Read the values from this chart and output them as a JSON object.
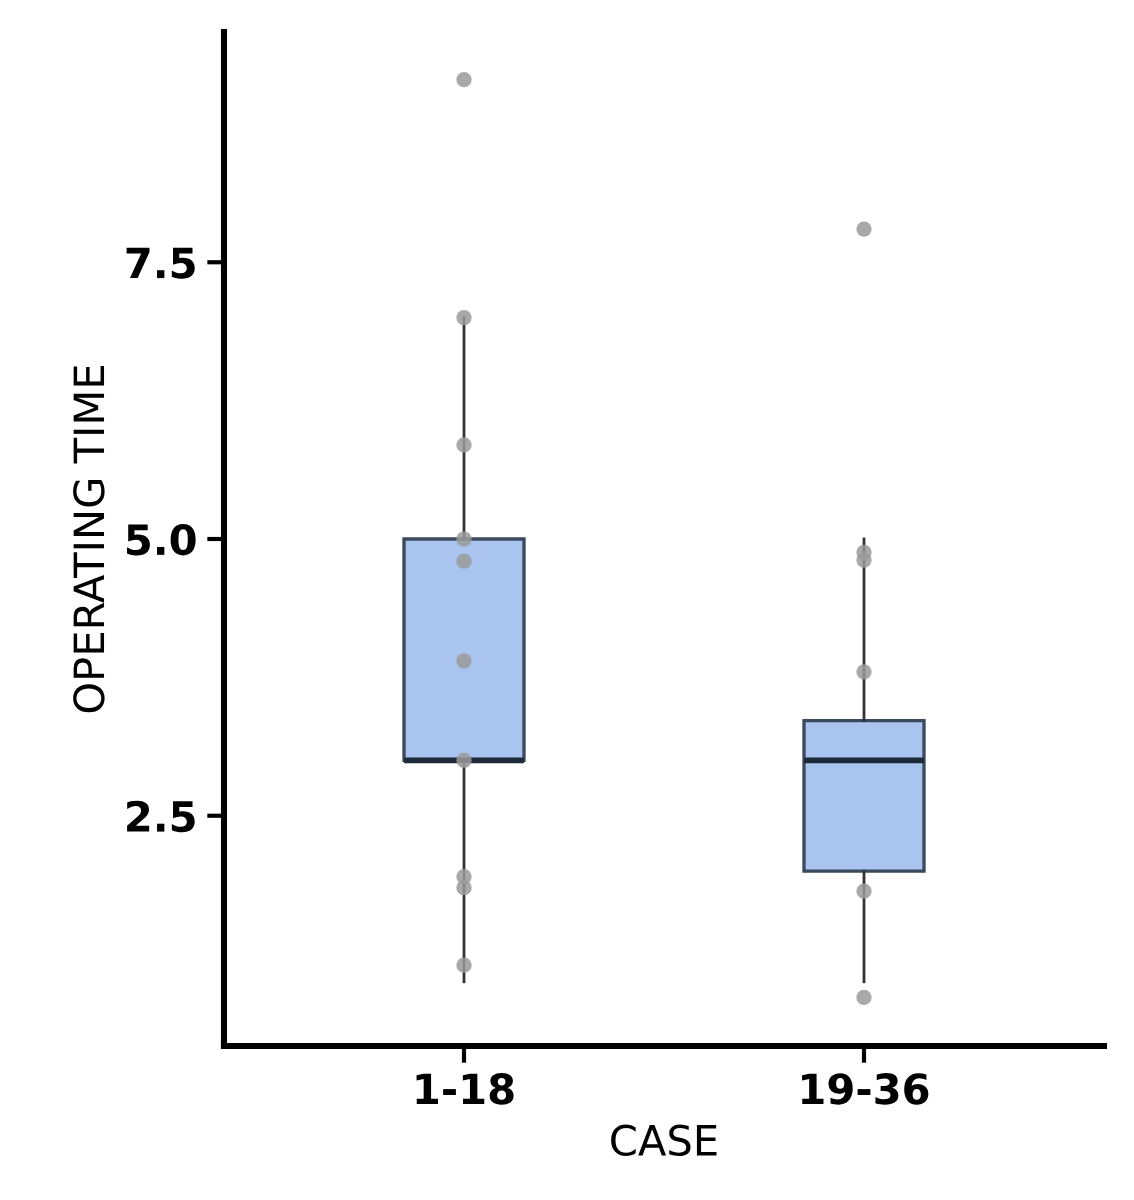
{
  "chart_data": {
    "type": "box",
    "xlabel": "CASE",
    "ylabel": "OPERATING TIME",
    "categories": [
      "1-18",
      "19-36"
    ],
    "ylim": [
      0.42,
      9.58
    ],
    "yticks": [
      {
        "value": 2.5,
        "label": "2.5"
      },
      {
        "value": 5,
        "label": "5.0"
      },
      {
        "value": 7.5,
        "label": "7.5"
      }
    ],
    "grid": false,
    "legend": false,
    "series": [
      {
        "color": "#a9c4ee",
        "boxes": [
          {
            "low": 1.0,
            "q1": 3.0,
            "median": 3.0,
            "q3": 5.0,
            "high": 7.0
          },
          {
            "low": 1.0,
            "q1": 2.0,
            "median": 3.0,
            "q3": 3.36,
            "high": 5.0
          }
        ]
      },
      {
        "type": "scatter",
        "color": "#9a9a9a",
        "marker": "circle",
        "x": [
          "1-18",
          "1-18",
          "1-18",
          "1-18",
          "1-18",
          "1-18",
          "1-18",
          "1-18",
          "1-18",
          "1-18",
          "19-36",
          "19-36",
          "19-36",
          "19-36",
          "19-36",
          "19-36"
        ],
        "values": [
          9.15,
          7.0,
          5.85,
          5.0,
          4.8,
          3.9,
          3.0,
          1.85,
          1.95,
          1.15,
          7.8,
          4.88,
          4.81,
          3.8,
          1.82,
          0.86
        ]
      }
    ]
  }
}
